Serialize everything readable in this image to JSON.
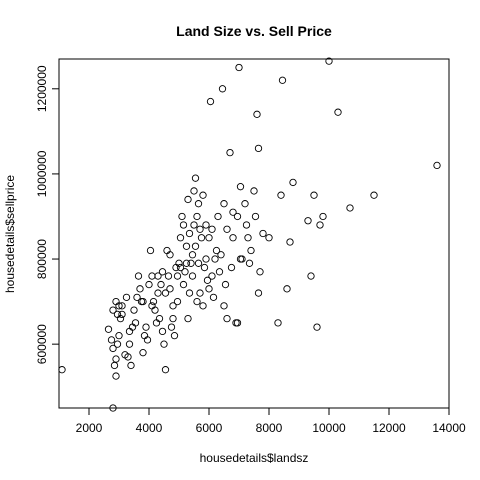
{
  "chart_data": {
    "type": "scatter",
    "title": "Land Size vs. Sell Price",
    "xlabel": "housedetails$landsz",
    "ylabel": "housedetails$sellprice",
    "xlim": [
      1000,
      14000
    ],
    "ylim": [
      450000,
      1270000
    ],
    "xticks": [
      2000,
      4000,
      6000,
      8000,
      10000,
      12000,
      14000
    ],
    "xtick_labels": [
      "2000",
      "4000",
      "6000",
      "8000",
      "10000",
      "12000",
      "14000"
    ],
    "yticks": [
      600000,
      800000,
      1000000,
      1200000
    ],
    "ytick_labels": [
      "600000",
      "800000",
      "1000000",
      "1200000"
    ],
    "grid": false,
    "legend": "none",
    "marker": "open-circle",
    "colors": {
      "marker": "#000000",
      "axes": "#000000",
      "background": "#ffffff"
    },
    "points": [
      [
        1100,
        540000
      ],
      [
        2800,
        450000
      ],
      [
        2900,
        525000
      ],
      [
        2650,
        635000
      ],
      [
        2750,
        610000
      ],
      [
        2800,
        590000
      ],
      [
        2850,
        550000
      ],
      [
        2900,
        565000
      ],
      [
        2950,
        600000
      ],
      [
        3000,
        620000
      ],
      [
        2800,
        680000
      ],
      [
        2900,
        700000
      ],
      [
        3000,
        690000
      ],
      [
        3050,
        660000
      ],
      [
        3100,
        670000
      ],
      [
        3200,
        575000
      ],
      [
        3300,
        570000
      ],
      [
        3350,
        600000
      ],
      [
        3400,
        550000
      ],
      [
        3450,
        640000
      ],
      [
        3500,
        680000
      ],
      [
        3600,
        710000
      ],
      [
        3700,
        730000
      ],
      [
        3750,
        700000
      ],
      [
        3800,
        580000
      ],
      [
        3850,
        620000
      ],
      [
        3900,
        640000
      ],
      [
        3950,
        610000
      ],
      [
        4000,
        740000
      ],
      [
        4050,
        820000
      ],
      [
        4100,
        760000
      ],
      [
        4150,
        700000
      ],
      [
        4200,
        680000
      ],
      [
        4250,
        650000
      ],
      [
        4300,
        720000
      ],
      [
        4350,
        660000
      ],
      [
        4400,
        740000
      ],
      [
        4450,
        770000
      ],
      [
        4500,
        600000
      ],
      [
        4550,
        540000
      ],
      [
        4600,
        820000
      ],
      [
        4650,
        760000
      ],
      [
        4700,
        730000
      ],
      [
        4750,
        640000
      ],
      [
        4800,
        690000
      ],
      [
        4850,
        620000
      ],
      [
        4900,
        780000
      ],
      [
        4950,
        760000
      ],
      [
        5000,
        790000
      ],
      [
        5050,
        850000
      ],
      [
        5100,
        900000
      ],
      [
        5150,
        880000
      ],
      [
        5200,
        770000
      ],
      [
        5250,
        830000
      ],
      [
        5300,
        940000
      ],
      [
        5350,
        720000
      ],
      [
        5400,
        790000
      ],
      [
        5450,
        810000
      ],
      [
        5500,
        960000
      ],
      [
        5550,
        990000
      ],
      [
        5600,
        900000
      ],
      [
        5650,
        930000
      ],
      [
        5700,
        870000
      ],
      [
        5750,
        850000
      ],
      [
        5800,
        950000
      ],
      [
        5850,
        780000
      ],
      [
        5900,
        800000
      ],
      [
        5950,
        750000
      ],
      [
        6000,
        850000
      ],
      [
        6050,
        1170000
      ],
      [
        6100,
        760000
      ],
      [
        6200,
        800000
      ],
      [
        6300,
        900000
      ],
      [
        6400,
        810000
      ],
      [
        6450,
        1200000
      ],
      [
        6500,
        690000
      ],
      [
        6550,
        740000
      ],
      [
        6600,
        660000
      ],
      [
        6700,
        1050000
      ],
      [
        6750,
        780000
      ],
      [
        6800,
        850000
      ],
      [
        6900,
        650000
      ],
      [
        6950,
        900000
      ],
      [
        7000,
        1250000
      ],
      [
        7050,
        970000
      ],
      [
        7100,
        800000
      ],
      [
        7200,
        930000
      ],
      [
        7300,
        850000
      ],
      [
        7400,
        820000
      ],
      [
        7500,
        960000
      ],
      [
        7550,
        900000
      ],
      [
        7600,
        1140000
      ],
      [
        7650,
        1060000
      ],
      [
        7700,
        770000
      ],
      [
        7800,
        860000
      ],
      [
        8000,
        850000
      ],
      [
        8300,
        650000
      ],
      [
        8400,
        950000
      ],
      [
        8450,
        1220000
      ],
      [
        8600,
        730000
      ],
      [
        8700,
        840000
      ],
      [
        8800,
        980000
      ],
      [
        9300,
        890000
      ],
      [
        9400,
        760000
      ],
      [
        9500,
        950000
      ],
      [
        9600,
        640000
      ],
      [
        9700,
        880000
      ],
      [
        9800,
        900000
      ],
      [
        10000,
        1265000
      ],
      [
        10300,
        1145000
      ],
      [
        10700,
        920000
      ],
      [
        11500,
        950000
      ],
      [
        13600,
        1020000
      ],
      [
        3100,
        690000
      ],
      [
        3250,
        710000
      ],
      [
        3550,
        650000
      ],
      [
        3650,
        760000
      ],
      [
        4100,
        690000
      ],
      [
        4300,
        760000
      ],
      [
        4550,
        720000
      ],
      [
        4700,
        810000
      ],
      [
        4800,
        660000
      ],
      [
        4950,
        700000
      ],
      [
        5050,
        780000
      ],
      [
        5150,
        740000
      ],
      [
        5250,
        790000
      ],
      [
        5350,
        860000
      ],
      [
        5450,
        760000
      ],
      [
        5500,
        880000
      ],
      [
        5550,
        830000
      ],
      [
        5650,
        790000
      ],
      [
        5700,
        720000
      ],
      [
        5800,
        690000
      ],
      [
        5900,
        880000
      ],
      [
        6000,
        730000
      ],
      [
        6100,
        870000
      ],
      [
        6250,
        820000
      ],
      [
        6350,
        770000
      ],
      [
        6500,
        930000
      ],
      [
        6600,
        870000
      ],
      [
        6800,
        910000
      ],
      [
        6950,
        650000
      ],
      [
        7050,
        800000
      ],
      [
        7250,
        880000
      ],
      [
        7350,
        790000
      ],
      [
        7650,
        720000
      ],
      [
        5300,
        660000
      ],
      [
        4450,
        630000
      ],
      [
        3800,
        700000
      ],
      [
        3350,
        630000
      ],
      [
        2950,
        670000
      ],
      [
        5600,
        700000
      ],
      [
        6150,
        710000
      ]
    ]
  }
}
